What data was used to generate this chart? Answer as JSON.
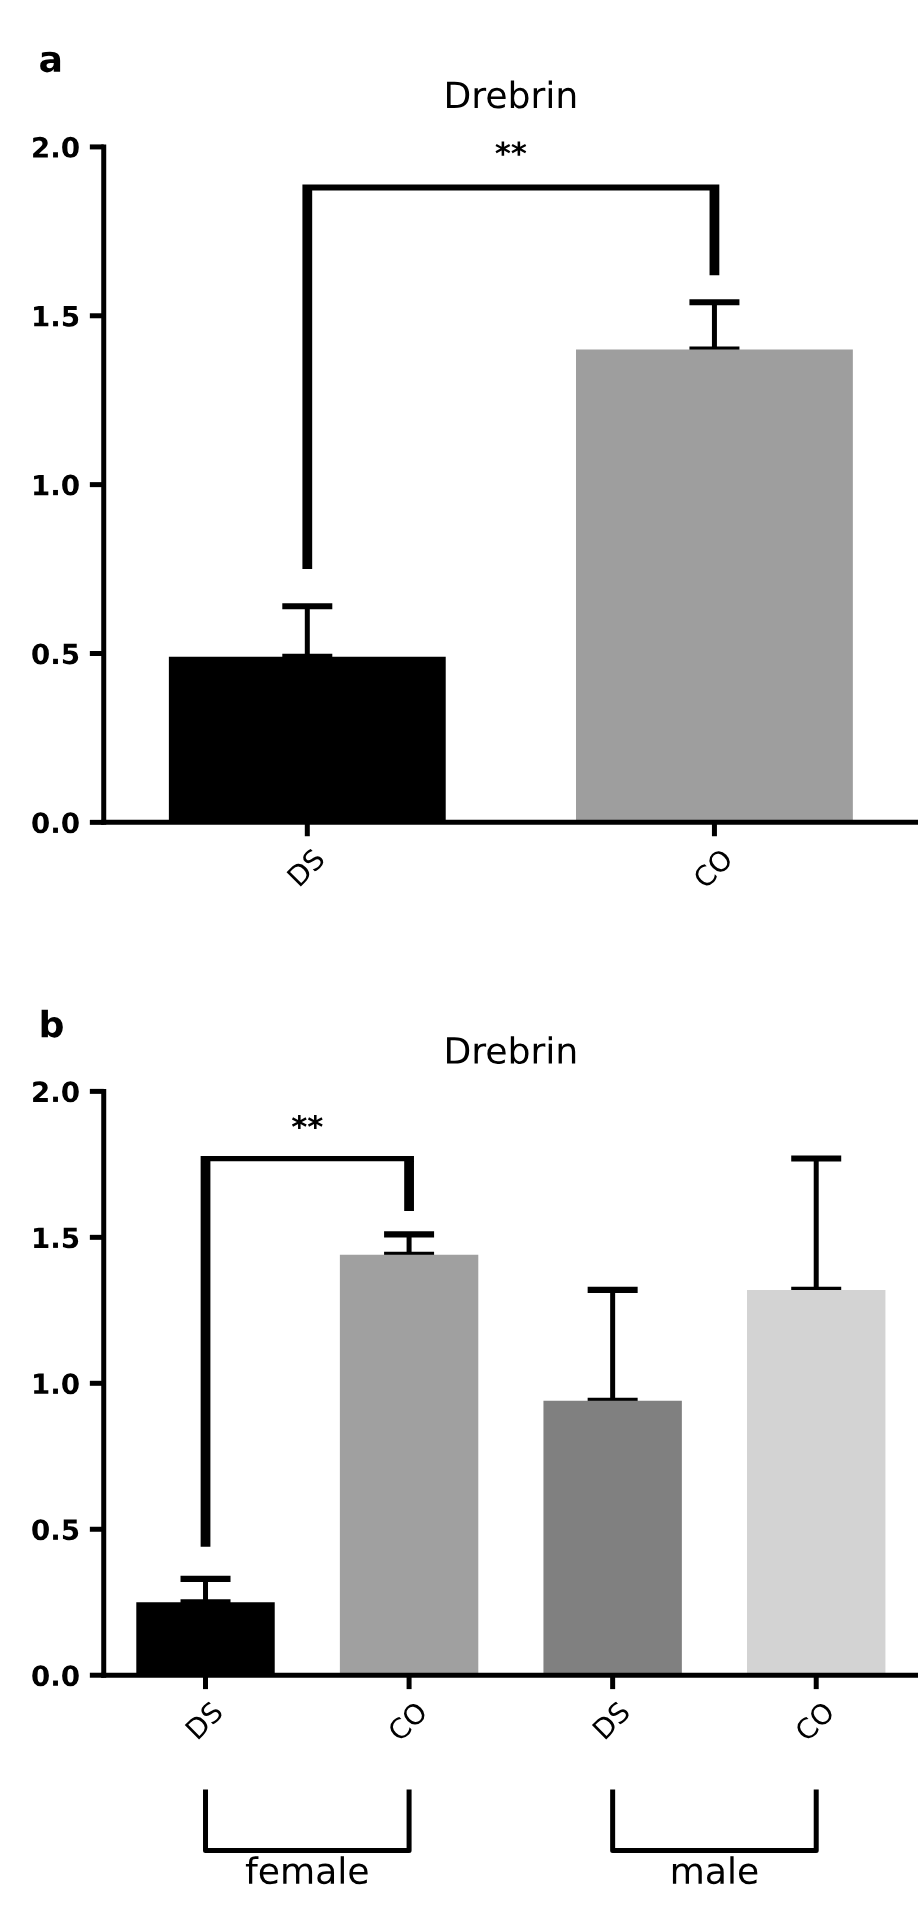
{
  "chart_data": [
    {
      "type": "bar",
      "title": "Drebrin",
      "categories": [
        "DS",
        "CO"
      ],
      "values": [
        0.49,
        1.4
      ],
      "colors": [
        "#000000",
        "#9e9e9e"
      ],
      "errors": [
        [
          0.49,
          0.64
        ],
        [
          1.4,
          1.54
        ]
      ],
      "ylim": [
        0,
        2.0
      ],
      "yticks": [
        {
          "value": 0.0,
          "label": "0.0"
        },
        {
          "value": 0.5,
          "label": "0.5"
        },
        {
          "value": 1.0,
          "label": "1.0"
        },
        {
          "value": 1.5,
          "label": "1.5"
        },
        {
          "value": 2.0,
          "label": "2.0"
        }
      ],
      "grid": false,
      "annotations": [
        "a",
        "**"
      ]
    },
    {
      "type": "bar",
      "title": "Drebrin",
      "categories": [
        "DS",
        "CO",
        "DS",
        "CO"
      ],
      "values": [
        0.25,
        1.44,
        0.94,
        1.32
      ],
      "colors": [
        "#000000",
        "#a0a0a0",
        "#808080",
        "#d3d3d3"
      ],
      "errors": [
        [
          0.25,
          0.33
        ],
        [
          1.44,
          1.51
        ],
        [
          0.94,
          1.32
        ],
        [
          1.32,
          1.77
        ]
      ],
      "ylim": [
        0,
        2.0
      ],
      "yticks": [
        {
          "value": 0.0,
          "label": "0.0"
        },
        {
          "value": 0.5,
          "label": "0.5"
        },
        {
          "value": 1.0,
          "label": "1.0"
        },
        {
          "value": 1.5,
          "label": "1.5"
        },
        {
          "value": 2.0,
          "label": "2.0"
        }
      ],
      "grid": false,
      "annotations": [
        "b",
        "**",
        "female",
        "male"
      ]
    }
  ]
}
